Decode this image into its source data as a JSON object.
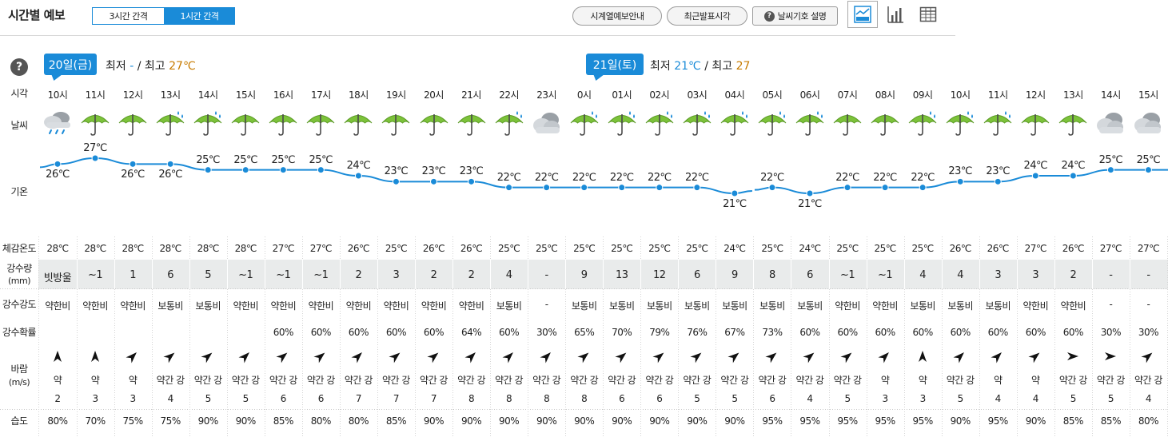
{
  "header": {
    "title": "시간별 예보",
    "interval_3h": "3시간 간격",
    "interval_1h": "1시간 간격",
    "btn_series_guide": "시계열예보안내",
    "btn_latest": "최근발표시각",
    "btn_weather_symbol": "날씨기호 설명",
    "view_icons": [
      "graph-view-icon",
      "bar-chart-view-icon",
      "table-view-icon"
    ],
    "accent_color": "#1a8bd8"
  },
  "days": [
    {
      "label": "20일(금)",
      "min_label": "최저",
      "min_value": "-",
      "sep": "/",
      "max_label": "최고",
      "max_value": "27℃"
    },
    {
      "label": "21일(토)",
      "min_label": "최저",
      "min_value": "21℃",
      "sep": "/",
      "max_label": "최고",
      "max_value": "27"
    }
  ],
  "row_labels": {
    "time": "시각",
    "weather": "날씨",
    "temp": "기온",
    "feels": "체감온도",
    "rain_amount": "강수량",
    "rain_amount_unit": "(mm)",
    "rain_intensity": "강수강도",
    "rain_prob": "강수확률",
    "wind": "바람",
    "wind_unit": "(m/s)",
    "humidity": "습도"
  },
  "hours": [
    {
      "time": "10시",
      "weather": "rain-cloud-icon",
      "temp": "26℃",
      "t": 26,
      "feels": "28℃",
      "rain": "빗방울",
      "intensity": "약한비",
      "prob": "",
      "wdir": 0,
      "wstr": "약",
      "wspd": "2",
      "hum": "80%"
    },
    {
      "time": "11시",
      "weather": "umbrella-icon",
      "temp": "27℃",
      "t": 27,
      "feels": "28℃",
      "rain": "~1",
      "intensity": "약한비",
      "prob": "",
      "wdir": 0,
      "wstr": "약",
      "wspd": "3",
      "hum": "70%"
    },
    {
      "time": "12시",
      "weather": "umbrella-icon",
      "temp": "26℃",
      "t": 26,
      "feels": "28℃",
      "rain": "1",
      "intensity": "약한비",
      "prob": "",
      "wdir": 45,
      "wstr": "약",
      "wspd": "3",
      "hum": "75%"
    },
    {
      "time": "13시",
      "weather": "umbrella-rain-icon",
      "temp": "26℃",
      "t": 26,
      "feels": "28℃",
      "rain": "6",
      "intensity": "보통비",
      "prob": "",
      "wdir": 50,
      "wstr": "약간 강",
      "wspd": "4",
      "hum": "75%"
    },
    {
      "time": "14시",
      "weather": "umbrella-rain-icon",
      "temp": "25℃",
      "t": 25,
      "feels": "28℃",
      "rain": "5",
      "intensity": "보통비",
      "prob": "",
      "wdir": 50,
      "wstr": "약간 강",
      "wspd": "5",
      "hum": "90%"
    },
    {
      "time": "15시",
      "weather": "umbrella-icon",
      "temp": "25℃",
      "t": 25,
      "feels": "28℃",
      "rain": "~1",
      "intensity": "약한비",
      "prob": "",
      "wdir": 45,
      "wstr": "약간 강",
      "wspd": "5",
      "hum": "90%"
    },
    {
      "time": "16시",
      "weather": "umbrella-icon",
      "temp": "25℃",
      "t": 25,
      "feels": "27℃",
      "rain": "~1",
      "intensity": "약한비",
      "prob": "60%",
      "wdir": 50,
      "wstr": "약간 강",
      "wspd": "6",
      "hum": "85%"
    },
    {
      "time": "17시",
      "weather": "umbrella-icon",
      "temp": "25℃",
      "t": 25,
      "feels": "27℃",
      "rain": "~1",
      "intensity": "약한비",
      "prob": "60%",
      "wdir": 50,
      "wstr": "약간 강",
      "wspd": "6",
      "hum": "80%"
    },
    {
      "time": "18시",
      "weather": "umbrella-icon",
      "temp": "24℃",
      "t": 24,
      "feels": "26℃",
      "rain": "2",
      "intensity": "약한비",
      "prob": "60%",
      "wdir": 45,
      "wstr": "약간 강",
      "wspd": "7",
      "hum": "80%"
    },
    {
      "time": "19시",
      "weather": "umbrella-icon",
      "temp": "23℃",
      "t": 23,
      "feels": "25℃",
      "rain": "3",
      "intensity": "약한비",
      "prob": "60%",
      "wdir": 50,
      "wstr": "약간 강",
      "wspd": "7",
      "hum": "85%"
    },
    {
      "time": "20시",
      "weather": "umbrella-icon",
      "temp": "23℃",
      "t": 23,
      "feels": "26℃",
      "rain": "2",
      "intensity": "약한비",
      "prob": "60%",
      "wdir": 50,
      "wstr": "약간 강",
      "wspd": "7",
      "hum": "90%"
    },
    {
      "time": "21시",
      "weather": "umbrella-icon",
      "temp": "23℃",
      "t": 23,
      "feels": "26℃",
      "rain": "2",
      "intensity": "약한비",
      "prob": "64%",
      "wdir": 45,
      "wstr": "약간 강",
      "wspd": "8",
      "hum": "90%"
    },
    {
      "time": "22시",
      "weather": "umbrella-rain-icon",
      "temp": "22℃",
      "t": 22,
      "feels": "25℃",
      "rain": "4",
      "intensity": "보통비",
      "prob": "60%",
      "wdir": 45,
      "wstr": "약간 강",
      "wspd": "8",
      "hum": "90%"
    },
    {
      "time": "23시",
      "weather": "cloudy-icon",
      "temp": "22℃",
      "t": 22,
      "feels": "25℃",
      "rain": "-",
      "intensity": "-",
      "prob": "30%",
      "wdir": 45,
      "wstr": "약간 강",
      "wspd": "8",
      "hum": "90%"
    },
    {
      "time": "0시",
      "weather": "umbrella-rain-icon",
      "temp": "22℃",
      "t": 22,
      "feels": "25℃",
      "rain": "9",
      "intensity": "보통비",
      "prob": "65%",
      "wdir": 50,
      "wstr": "약간 강",
      "wspd": "8",
      "hum": "90%"
    },
    {
      "time": "01시",
      "weather": "umbrella-rain-icon",
      "temp": "22℃",
      "t": 22,
      "feels": "25℃",
      "rain": "13",
      "intensity": "보통비",
      "prob": "70%",
      "wdir": 50,
      "wstr": "약간 강",
      "wspd": "6",
      "hum": "90%"
    },
    {
      "time": "02시",
      "weather": "umbrella-rain-icon",
      "temp": "22℃",
      "t": 22,
      "feels": "25℃",
      "rain": "12",
      "intensity": "보통비",
      "prob": "79%",
      "wdir": 50,
      "wstr": "약간 강",
      "wspd": "6",
      "hum": "90%"
    },
    {
      "time": "03시",
      "weather": "umbrella-rain-icon",
      "temp": "22℃",
      "t": 22,
      "feels": "25℃",
      "rain": "6",
      "intensity": "보통비",
      "prob": "76%",
      "wdir": 50,
      "wstr": "약간 강",
      "wspd": "5",
      "hum": "90%"
    },
    {
      "time": "04시",
      "weather": "umbrella-rain-icon",
      "temp": "21℃",
      "t": 21,
      "feels": "24℃",
      "rain": "9",
      "intensity": "보통비",
      "prob": "67%",
      "wdir": 50,
      "wstr": "약간 강",
      "wspd": "5",
      "hum": "90%"
    },
    {
      "time": "05시",
      "weather": "umbrella-rain-icon",
      "temp": "22℃",
      "t": 22,
      "feels": "25℃",
      "rain": "8",
      "intensity": "보통비",
      "prob": "73%",
      "wdir": 50,
      "wstr": "약간 강",
      "wspd": "6",
      "hum": "95%"
    },
    {
      "time": "06시",
      "weather": "umbrella-rain-icon",
      "temp": "21℃",
      "t": 21,
      "feels": "24℃",
      "rain": "6",
      "intensity": "보통비",
      "prob": "60%",
      "wdir": 50,
      "wstr": "약간 강",
      "wspd": "4",
      "hum": "95%"
    },
    {
      "time": "07시",
      "weather": "umbrella-icon",
      "temp": "22℃",
      "t": 22,
      "feels": "25℃",
      "rain": "~1",
      "intensity": "약한비",
      "prob": "60%",
      "wdir": 50,
      "wstr": "약간 강",
      "wspd": "5",
      "hum": "95%"
    },
    {
      "time": "08시",
      "weather": "umbrella-icon",
      "temp": "22℃",
      "t": 22,
      "feels": "25℃",
      "rain": "~1",
      "intensity": "약한비",
      "prob": "60%",
      "wdir": 45,
      "wstr": "약",
      "wspd": "3",
      "hum": "95%"
    },
    {
      "time": "09시",
      "weather": "umbrella-rain-icon",
      "temp": "22℃",
      "t": 22,
      "feels": "25℃",
      "rain": "4",
      "intensity": "보통비",
      "prob": "60%",
      "wdir": 0,
      "wstr": "약",
      "wspd": "3",
      "hum": "95%"
    },
    {
      "time": "10시",
      "weather": "umbrella-rain-icon",
      "temp": "23℃",
      "t": 23,
      "feels": "26℃",
      "rain": "4",
      "intensity": "보통비",
      "prob": "60%",
      "wdir": 45,
      "wstr": "약간 강",
      "wspd": "5",
      "hum": "90%"
    },
    {
      "time": "11시",
      "weather": "umbrella-rain-icon",
      "temp": "23℃",
      "t": 23,
      "feels": "26℃",
      "rain": "3",
      "intensity": "보통비",
      "prob": "60%",
      "wdir": 45,
      "wstr": "약",
      "wspd": "4",
      "hum": "95%"
    },
    {
      "time": "12시",
      "weather": "umbrella-icon",
      "temp": "24℃",
      "t": 24,
      "feels": "27℃",
      "rain": "3",
      "intensity": "약한비",
      "prob": "60%",
      "wdir": 50,
      "wstr": "약",
      "wspd": "4",
      "hum": "90%"
    },
    {
      "time": "13시",
      "weather": "umbrella-icon",
      "temp": "24℃",
      "t": 24,
      "feels": "26℃",
      "rain": "2",
      "intensity": "약한비",
      "prob": "60%",
      "wdir": 90,
      "wstr": "약간 강",
      "wspd": "5",
      "hum": "85%"
    },
    {
      "time": "14시",
      "weather": "cloudy-icon",
      "temp": "25℃",
      "t": 25,
      "feels": "27℃",
      "rain": "-",
      "intensity": "-",
      "prob": "30%",
      "wdir": 90,
      "wstr": "약간 강",
      "wspd": "5",
      "hum": "85%"
    },
    {
      "time": "15시",
      "weather": "cloudy-icon",
      "temp": "25℃",
      "t": 25,
      "feels": "27℃",
      "rain": "-",
      "intensity": "-",
      "prob": "30%",
      "wdir": 50,
      "wstr": "약간 강",
      "wspd": "4",
      "hum": "80%"
    }
  ]
}
